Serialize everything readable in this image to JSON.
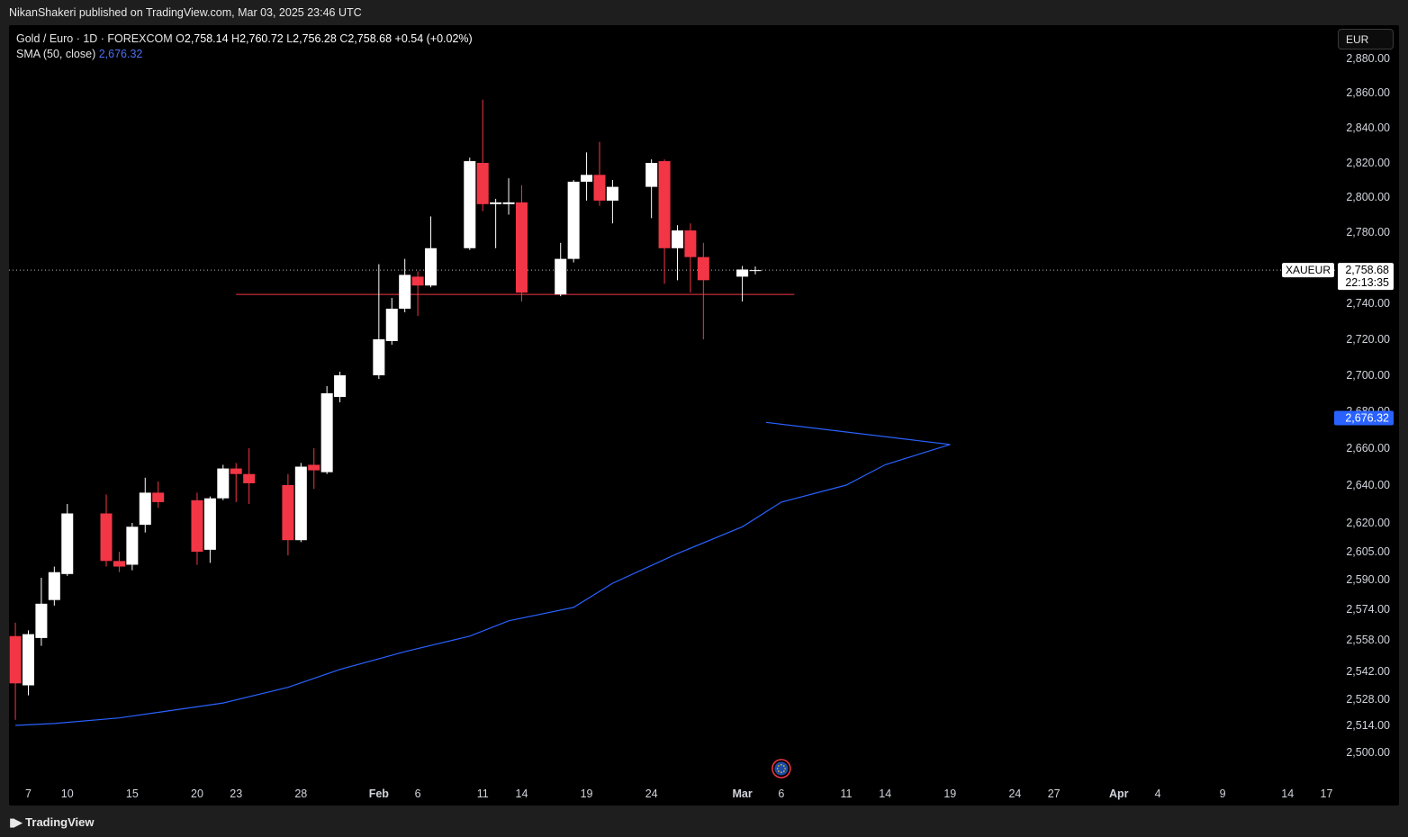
{
  "header": {
    "published_text": "NikanShakeri published on TradingView.com, Mar 03, 2025 23:46 UTC"
  },
  "legend": {
    "symbol_text": "Gold / Euro · 1D · FOREXCOM",
    "o_label": "O",
    "o_value": "2,758.14",
    "h_label": "H",
    "h_value": "2,760.72",
    "l_label": "L",
    "l_value": "2,756.28",
    "c_label": "C",
    "c_value": "2,758.68",
    "change": "+0.54 (+0.02%)",
    "sma_label": "SMA (50, close)",
    "sma_value": "2,676.32"
  },
  "currency_button": "EUR",
  "footer": {
    "brand": "TradingView"
  },
  "colors": {
    "background": "#000000",
    "up": "#ffffff",
    "down": "#f23645",
    "sma": "#2962ff",
    "level_line": "#f23645",
    "grid_text": "#d1d4dc"
  },
  "chart_data": {
    "type": "candlestick",
    "title": "",
    "symbol_tag": "XAUEUR",
    "last_price_label": "2,758.68",
    "countdown": "22:13:35",
    "sma_label_tag": "2,676.32",
    "last_price": 2758.68,
    "horizontal_level": 2745,
    "y_ticks": [
      2880,
      2860,
      2840,
      2820,
      2800,
      2780,
      2740,
      2720,
      2700,
      2680,
      2660,
      2640,
      2620,
      2605,
      2590,
      2574,
      2558,
      2542,
      2528,
      2514,
      2500
    ],
    "y_tick_labels": [
      "2,880.00",
      "2,860.00",
      "2,840.00",
      "2,820.00",
      "2,800.00",
      "2,780.00",
      "2,740.00",
      "2,720.00",
      "2,700.00",
      "2,680.00",
      "2,660.00",
      "2,640.00",
      "2,620.00",
      "2,605.00",
      "2,590.00",
      "2,574.00",
      "2,558.00",
      "2,542.00",
      "2,528.00",
      "2,514.00",
      "2,500.00"
    ],
    "x_ticks": [
      {
        "date": "2025-01-07",
        "label": "7"
      },
      {
        "date": "2025-01-10",
        "label": "10"
      },
      {
        "date": "2025-01-15",
        "label": "15"
      },
      {
        "date": "2025-01-20",
        "label": "20"
      },
      {
        "date": "2025-01-23",
        "label": "23"
      },
      {
        "date": "2025-01-28",
        "label": "28"
      },
      {
        "date": "2025-02-03",
        "label": "Feb"
      },
      {
        "date": "2025-02-06",
        "label": "6"
      },
      {
        "date": "2025-02-11",
        "label": "11"
      },
      {
        "date": "2025-02-14",
        "label": "14"
      },
      {
        "date": "2025-02-19",
        "label": "19"
      },
      {
        "date": "2025-02-24",
        "label": "24"
      },
      {
        "date": "2025-03-03",
        "label": "Mar"
      },
      {
        "date": "2025-03-06",
        "label": "6"
      },
      {
        "date": "2025-03-11",
        "label": "11"
      },
      {
        "date": "2025-03-14",
        "label": "14"
      },
      {
        "date": "2025-03-19",
        "label": "19"
      },
      {
        "date": "2025-03-24",
        "label": "24"
      },
      {
        "date": "2025-03-27",
        "label": "27"
      },
      {
        "date": "2025-04-01",
        "label": "Apr"
      },
      {
        "date": "2025-04-04",
        "label": "4"
      },
      {
        "date": "2025-04-09",
        "label": "9"
      },
      {
        "date": "2025-04-14",
        "label": "14"
      },
      {
        "date": "2025-04-17",
        "label": "17"
      }
    ],
    "candles": [
      {
        "d": "2025-01-06",
        "o": 2560,
        "h": 2567,
        "l": 2517,
        "c": 2536
      },
      {
        "d": "2025-01-07",
        "o": 2535,
        "h": 2563,
        "l": 2530,
        "c": 2561
      },
      {
        "d": "2025-01-08",
        "o": 2559,
        "h": 2591,
        "l": 2555,
        "c": 2577
      },
      {
        "d": "2025-01-09",
        "o": 2579,
        "h": 2597,
        "l": 2576,
        "c": 2594
      },
      {
        "d": "2025-01-10",
        "o": 2593,
        "h": 2630,
        "l": 2592,
        "c": 2625
      },
      {
        "d": "2025-01-13",
        "o": 2625,
        "h": 2635,
        "l": 2597,
        "c": 2600
      },
      {
        "d": "2025-01-14",
        "o": 2600,
        "h": 2605,
        "l": 2594,
        "c": 2597
      },
      {
        "d": "2025-01-15",
        "o": 2598,
        "h": 2620,
        "l": 2595,
        "c": 2618
      },
      {
        "d": "2025-01-16",
        "o": 2619,
        "h": 2644,
        "l": 2615,
        "c": 2636
      },
      {
        "d": "2025-01-17",
        "o": 2636,
        "h": 2642,
        "l": 2628,
        "c": 2631
      },
      {
        "d": "2025-01-20",
        "o": 2632,
        "h": 2636,
        "l": 2598,
        "c": 2605
      },
      {
        "d": "2025-01-21",
        "o": 2606,
        "h": 2634,
        "l": 2599,
        "c": 2633
      },
      {
        "d": "2025-01-22",
        "o": 2633,
        "h": 2651,
        "l": 2632,
        "c": 2649
      },
      {
        "d": "2025-01-23",
        "o": 2649,
        "h": 2652,
        "l": 2631,
        "c": 2646
      },
      {
        "d": "2025-01-24",
        "o": 2646,
        "h": 2660,
        "l": 2630,
        "c": 2641
      },
      {
        "d": "2025-01-27",
        "o": 2640,
        "h": 2646,
        "l": 2603,
        "c": 2611
      },
      {
        "d": "2025-01-28",
        "o": 2611,
        "h": 2652,
        "l": 2610,
        "c": 2650
      },
      {
        "d": "2025-01-29",
        "o": 2651,
        "h": 2660,
        "l": 2638,
        "c": 2648
      },
      {
        "d": "2025-01-30",
        "o": 2647,
        "h": 2694,
        "l": 2646,
        "c": 2690
      },
      {
        "d": "2025-01-31",
        "o": 2688,
        "h": 2702,
        "l": 2685,
        "c": 2700
      },
      {
        "d": "2025-02-03",
        "o": 2700,
        "h": 2762,
        "l": 2698,
        "c": 2720
      },
      {
        "d": "2025-02-04",
        "o": 2719,
        "h": 2743,
        "l": 2717,
        "c": 2737
      },
      {
        "d": "2025-02-05",
        "o": 2737,
        "h": 2765,
        "l": 2735,
        "c": 2756
      },
      {
        "d": "2025-02-06",
        "o": 2755,
        "h": 2758,
        "l": 2733,
        "c": 2750
      },
      {
        "d": "2025-02-07",
        "o": 2750,
        "h": 2789,
        "l": 2749,
        "c": 2771
      },
      {
        "d": "2025-02-10",
        "o": 2771,
        "h": 2823,
        "l": 2770,
        "c": 2821
      },
      {
        "d": "2025-02-11",
        "o": 2820,
        "h": 2856,
        "l": 2792,
        "c": 2796
      },
      {
        "d": "2025-02-12",
        "o": 2796,
        "h": 2799,
        "l": 2771,
        "c": 2797
      },
      {
        "d": "2025-02-13",
        "o": 2796,
        "h": 2811,
        "l": 2790,
        "c": 2797
      },
      {
        "d": "2025-02-14",
        "o": 2797,
        "h": 2807,
        "l": 2741,
        "c": 2746
      },
      {
        "d": "2025-02-17",
        "o": 2745,
        "h": 2774,
        "l": 2744,
        "c": 2765
      },
      {
        "d": "2025-02-18",
        "o": 2765,
        "h": 2810,
        "l": 2763,
        "c": 2809
      },
      {
        "d": "2025-02-19",
        "o": 2809,
        "h": 2826,
        "l": 2798,
        "c": 2813
      },
      {
        "d": "2025-02-20",
        "o": 2813,
        "h": 2832,
        "l": 2795,
        "c": 2798
      },
      {
        "d": "2025-02-21",
        "o": 2798,
        "h": 2810,
        "l": 2785,
        "c": 2806
      },
      {
        "d": "2025-02-24",
        "o": 2806,
        "h": 2822,
        "l": 2788,
        "c": 2820
      },
      {
        "d": "2025-02-25",
        "o": 2821,
        "h": 2822,
        "l": 2751,
        "c": 2771
      },
      {
        "d": "2025-02-26",
        "o": 2771,
        "h": 2784,
        "l": 2753,
        "c": 2781
      },
      {
        "d": "2025-02-27",
        "o": 2781,
        "h": 2785,
        "l": 2746,
        "c": 2766
      },
      {
        "d": "2025-02-28",
        "o": 2766,
        "h": 2774,
        "l": 2720,
        "c": 2753
      },
      {
        "d": "2025-03-03",
        "o": 2755,
        "h": 2761,
        "l": 2741,
        "c": 2759
      },
      {
        "d": "2025-03-04",
        "o": 2758.14,
        "h": 2760.72,
        "l": 2756.28,
        "c": 2758.68
      }
    ],
    "sma": {
      "name": "SMA (50, close)",
      "points": [
        [
          "2025-01-06",
          2514
        ],
        [
          "2025-01-09",
          2515
        ],
        [
          "2025-01-14",
          2518
        ],
        [
          "2025-01-17",
          2521
        ],
        [
          "2025-01-22",
          2526
        ],
        [
          "2025-01-27",
          2534
        ],
        [
          "2025-01-31",
          2543
        ],
        [
          "2025-02-05",
          2552
        ],
        [
          "2025-02-10",
          2560
        ],
        [
          "2025-02-13",
          2568
        ],
        [
          "2025-02-18",
          2575
        ],
        [
          "2025-02-21",
          2588
        ],
        [
          "2025-02-26",
          2604
        ],
        [
          "2025-03-03",
          2618
        ],
        [
          "2025-03-06",
          2631
        ],
        [
          "2025-03-11",
          2640
        ],
        [
          "2025-03-14",
          2651
        ],
        [
          "2025-03-19",
          2662
        ],
        [
          "2025-03-24",
          2676.32
        ]
      ]
    }
  }
}
